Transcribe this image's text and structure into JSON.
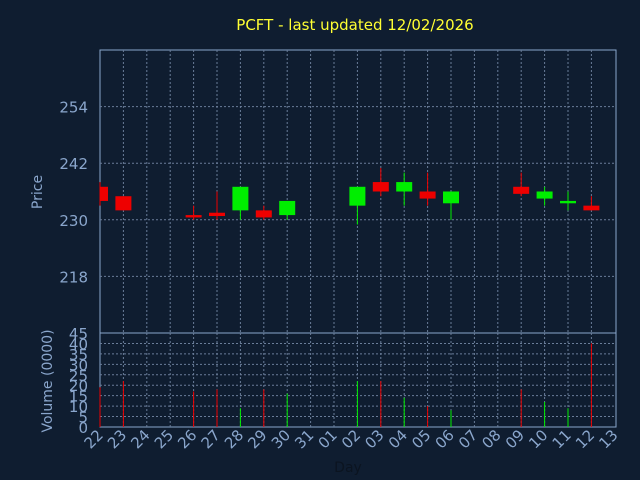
{
  "chart_data": {
    "type": "candlestick",
    "title": "PCFT - last updated 12/02/2026",
    "xlabel": "Day",
    "ylabel_price": "Price",
    "ylabel_volume": "Volume (0000)",
    "price_ticks": [
      218,
      230,
      242,
      254
    ],
    "price_ylim": [
      206,
      266
    ],
    "volume_ticks": [
      0,
      5,
      10,
      15,
      20,
      25,
      30,
      35,
      40,
      45
    ],
    "volume_ylim": [
      0,
      45
    ],
    "x_ticks": [
      "22",
      "23",
      "24",
      "25",
      "26",
      "27",
      "28",
      "29",
      "30",
      "31",
      "01",
      "02",
      "03",
      "04",
      "05",
      "06",
      "07",
      "08",
      "09",
      "10",
      "11",
      "12",
      "13"
    ],
    "grid": true,
    "colors": {
      "background": "#0f1d30",
      "title": "#ffff33",
      "axis": "#8aa6cc",
      "up": "#00ee00",
      "down": "#ee0000",
      "grid": "#6a7d99"
    },
    "candles": [
      {
        "day": "22",
        "open": 237,
        "high": 238,
        "low": 233,
        "close": 234,
        "volume": 19
      },
      {
        "day": "23",
        "open": 235,
        "high": 235,
        "low": 232,
        "close": 232,
        "volume": 22
      },
      {
        "day": "26",
        "open": 231,
        "high": 233,
        "low": 230,
        "close": 230.5,
        "volume": 17
      },
      {
        "day": "27",
        "open": 231.5,
        "high": 236,
        "low": 230,
        "close": 230.8,
        "volume": 18
      },
      {
        "day": "28",
        "open": 232,
        "high": 237,
        "low": 230,
        "close": 237,
        "volume": 9
      },
      {
        "day": "29",
        "open": 232,
        "high": 233,
        "low": 230,
        "close": 230.5,
        "volume": 18
      },
      {
        "day": "30",
        "open": 231,
        "high": 234,
        "low": 230,
        "close": 234,
        "volume": 16
      },
      {
        "day": "02",
        "open": 233,
        "high": 237,
        "low": 229,
        "close": 237,
        "volume": 22
      },
      {
        "day": "03",
        "open": 238,
        "high": 241,
        "low": 235,
        "close": 236,
        "volume": 22
      },
      {
        "day": "04",
        "open": 236,
        "high": 240,
        "low": 233,
        "close": 238,
        "volume": 14
      },
      {
        "day": "05",
        "open": 236,
        "high": 240,
        "low": 233,
        "close": 234.5,
        "volume": 10
      },
      {
        "day": "06",
        "open": 233.5,
        "high": 236,
        "low": 230,
        "close": 236,
        "volume": 8
      },
      {
        "day": "09",
        "open": 237,
        "high": 240,
        "low": 235,
        "close": 235.5,
        "volume": 18
      },
      {
        "day": "10",
        "open": 234.5,
        "high": 237,
        "low": 233,
        "close": 236,
        "volume": 12
      },
      {
        "day": "11",
        "open": 233.5,
        "high": 236,
        "low": 232,
        "close": 234,
        "volume": 9
      },
      {
        "day": "12",
        "open": 233,
        "high": 235,
        "low": 232,
        "close": 232,
        "volume": 40
      }
    ]
  }
}
